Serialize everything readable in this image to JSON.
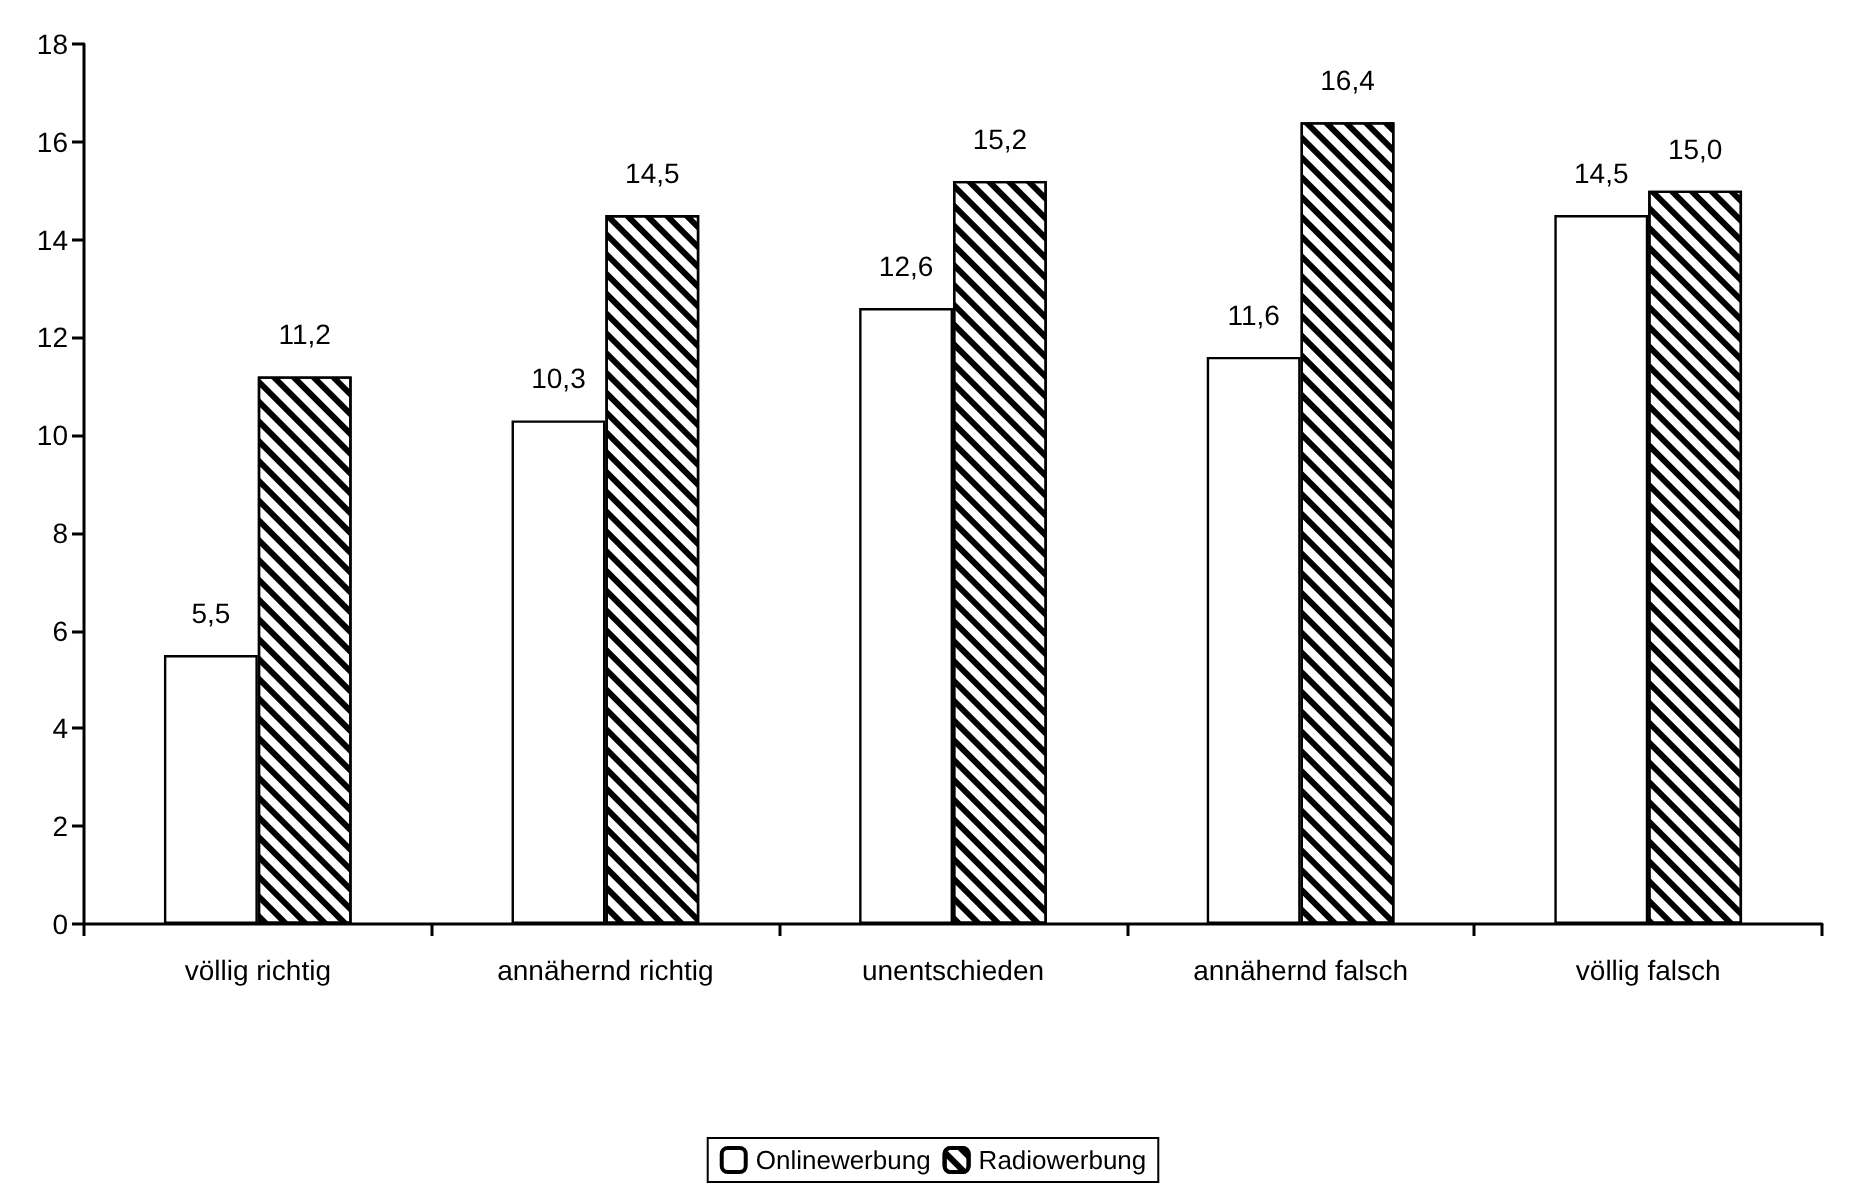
{
  "chart_data": {
    "type": "bar",
    "categories": [
      "völlig richtig",
      "annähernd richtig",
      "unentschieden",
      "annähernd falsch",
      "völlig falsch"
    ],
    "series": [
      {
        "name": "Onlinewerbung",
        "color": "#ffffff",
        "values": [
          5.5,
          10.3,
          12.6,
          11.6,
          14.5
        ],
        "value_labels": [
          "5,5",
          "10,3",
          "12,6",
          "11,6",
          "14,5"
        ]
      },
      {
        "name": "Radiowerbung",
        "color": "#000000",
        "values": [
          11.2,
          14.5,
          15.2,
          16.4,
          15.0
        ],
        "value_labels": [
          "11,2",
          "14,5",
          "15,2",
          "16,4",
          "15,0"
        ]
      }
    ],
    "ylim": [
      0,
      18
    ],
    "yticks": [
      0,
      2,
      4,
      6,
      8,
      10,
      12,
      14,
      16,
      18
    ],
    "grid": false,
    "legend": "bottom"
  }
}
